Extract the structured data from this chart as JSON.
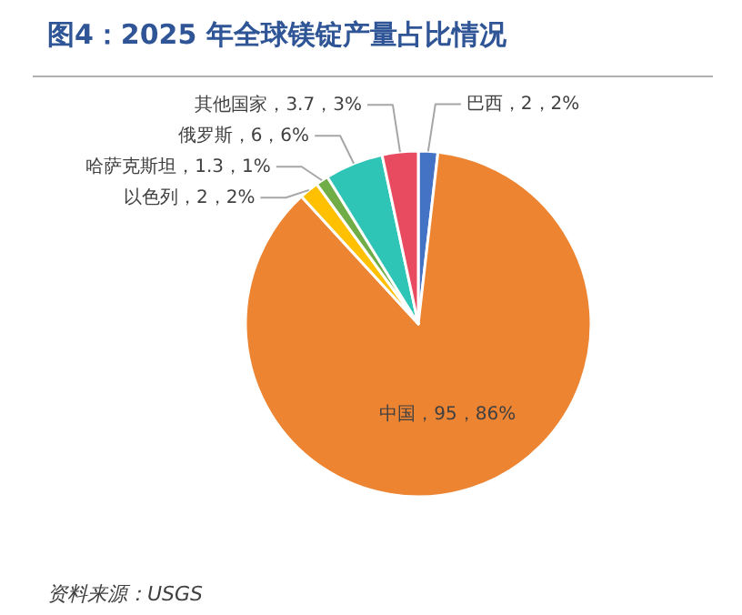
{
  "chart_data": {
    "type": "pie",
    "title": "图4：2025 年全球镁锭产量占比情况",
    "categories": [
      "巴西",
      "中国",
      "以色列",
      "哈萨克斯坦",
      "俄罗斯",
      "其他国家"
    ],
    "values": [
      2,
      95,
      2,
      1.3,
      6,
      3.7
    ],
    "colors": [
      "#4472c4",
      "#ed8432",
      "#ffc000",
      "#70ad47",
      "#2ec4b6",
      "#e84a5f"
    ],
    "value_labels": [
      "2，2%",
      "95，86%",
      "2，2%",
      "1.3，1%",
      "6，6%",
      "3.7，3%"
    ],
    "annotations": [
      "资料来源：USGS"
    ]
  }
}
